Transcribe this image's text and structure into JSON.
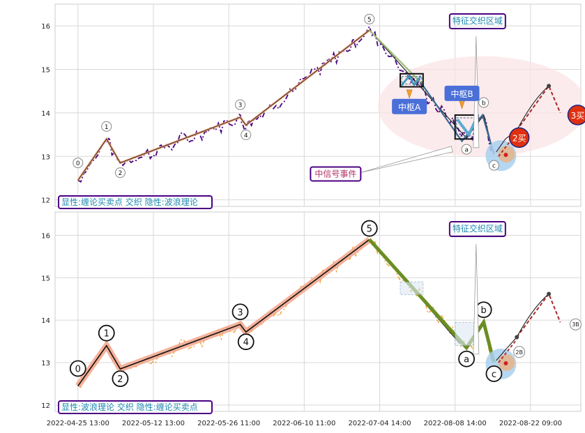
{
  "chart_data": [
    {
      "type": "line",
      "panel": "top",
      "ylim": [
        11.85,
        16.5
      ],
      "yticks": [
        12,
        13,
        14,
        15,
        16
      ],
      "grid": true,
      "caption": "显性:缠论买卖点 交织 隐性:波浪理论",
      "price_series": {
        "style": "dash-dot",
        "color": "#4B0082",
        "values": [
          13.5,
          13.1,
          12.7,
          12.5,
          13.0,
          13.3,
          13.2,
          12.9,
          12.95,
          13.1,
          13.2,
          13.1,
          13.25,
          13.5,
          13.6,
          13.4,
          13.55,
          13.45,
          13.4,
          13.35,
          13.5,
          13.6,
          13.55,
          13.6,
          13.7,
          13.75,
          13.8,
          13.6,
          13.55,
          13.7,
          13.95,
          13.85,
          13.8,
          13.9,
          14.05,
          14.2,
          14.1,
          14.3,
          14.4,
          14.55,
          14.6,
          14.7,
          14.85,
          15.0,
          15.2,
          15.3,
          15.5,
          15.9,
          15.4,
          15.1,
          15.0,
          14.9,
          14.8,
          14.6,
          14.6,
          14.4,
          14.3,
          14.1,
          13.9,
          13.8,
          13.6,
          13.5,
          13.55,
          13.7,
          13.9,
          13.8,
          13.5,
          13.3,
          13.0,
          12.95
        ]
      },
      "wave_points": [
        {
          "label": "0",
          "x": 0.0,
          "y": 12.45
        },
        {
          "label": "1",
          "x": 12.5,
          "y": 13.4
        },
        {
          "label": "2",
          "x": 18.5,
          "y": 12.85
        },
        {
          "label": "3",
          "x": 71.0,
          "y": 13.9
        },
        {
          "label": "4",
          "x": 73.5,
          "y": 13.72
        },
        {
          "label": "5",
          "x": 127.5,
          "y": 15.9
        },
        {
          "label": "a",
          "x": 170.0,
          "y": 13.42
        },
        {
          "label": "b",
          "x": 177.5,
          "y": 13.95
        },
        {
          "label": "c",
          "x": 182.0,
          "y": 13.05
        }
      ],
      "zones": [
        {
          "label": "中枢A",
          "x": [
            141,
            151
          ],
          "y": [
            14.6,
            14.9
          ]
        },
        {
          "label": "中枢B",
          "x": [
            165,
            175
          ],
          "y": [
            13.4,
            13.95
          ]
        }
      ],
      "annotations": [
        "特征交织区域",
        "中信号事件",
        "中枢A",
        "中枢B"
      ],
      "buy_points": [
        {
          "label": "2买",
          "x": 190,
          "y": 13.4
        },
        {
          "label": "3买",
          "x": 211,
          "y": 14.0
        }
      ],
      "projection": {
        "x": [
          183,
          187,
          192,
          206,
          211
        ],
        "y": [
          13.1,
          13.4,
          13.6,
          14.62,
          14.0
        ]
      }
    },
    {
      "type": "line",
      "panel": "bottom",
      "ylim": [
        11.85,
        16.55
      ],
      "yticks": [
        12,
        13,
        14,
        15,
        16
      ],
      "grid": true,
      "caption": "显性:波浪理论 交织 隐性:缠论买卖点",
      "price_series": {
        "style": "dash-dot",
        "color": "#F0A030"
      },
      "wave_points": [
        {
          "label": "0",
          "x": 0.0,
          "y": 12.45
        },
        {
          "label": "1",
          "x": 12.5,
          "y": 13.4
        },
        {
          "label": "2",
          "x": 18.5,
          "y": 12.85
        },
        {
          "label": "3",
          "x": 71.0,
          "y": 13.9
        },
        {
          "label": "4",
          "x": 73.5,
          "y": 13.72
        },
        {
          "label": "5",
          "x": 127.5,
          "y": 15.9
        },
        {
          "label": "a",
          "x": 170.0,
          "y": 13.35
        },
        {
          "label": "b",
          "x": 177.5,
          "y": 13.95
        },
        {
          "label": "c",
          "x": 182.0,
          "y": 13.0
        }
      ],
      "annotations": [
        "特征交织区域"
      ],
      "buy_points": [
        {
          "label": "2B",
          "x": 190,
          "y": 13.3
        },
        {
          "label": "3B",
          "x": 211,
          "y": 13.95
        }
      ],
      "projection": {
        "x": [
          183,
          187,
          192,
          206,
          211
        ],
        "y": [
          13.05,
          13.3,
          13.6,
          14.62,
          13.95
        ]
      },
      "xtick_labels": [
        "2022-04-25 13:00",
        "2022-05-12 13:00",
        "2022-05-26 11:00",
        "2022-06-10 11:00",
        "2022-07-04 14:00",
        "2022-08-08 14:00",
        "2022-08-22 09:00"
      ],
      "xticks": [
        0,
        33,
        66,
        99,
        132,
        165,
        198
      ]
    }
  ]
}
